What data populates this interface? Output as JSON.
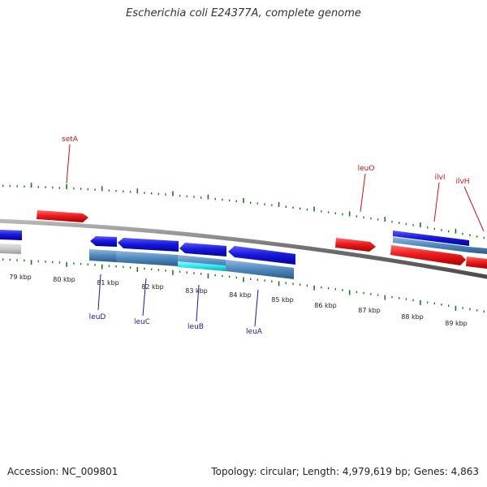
{
  "title": "Escherichia coli E24377A, complete genome",
  "footer": {
    "accession": "Accession: NC_009801",
    "topology": "Topology: circular; Length: 4,979,619 bp; Genes: 4,863"
  },
  "colors": {
    "backbone": "#7f7f7f",
    "tick": "#1a7a1a",
    "forward_gene": "#ee1c1c",
    "reverse_gene": "#1a1add",
    "operon": "#4f88bd",
    "operon_highlight": "#2ee8f0",
    "forward_label": "#cc1111",
    "reverse_label": "#1a1aaa"
  },
  "scale": {
    "unit": "kbp",
    "labels": [
      "79 kbp",
      "80 kbp",
      "81 kbp",
      "82 kbp",
      "83 kbp",
      "84 kbp",
      "85 kbp",
      "86 kbp",
      "87 kbp",
      "88 kbp",
      "89 kbp"
    ]
  },
  "forward_genes": [
    {
      "label": "setA"
    },
    {
      "label": "leuO"
    },
    {
      "label": "ilvI"
    },
    {
      "label": "ilvH"
    }
  ],
  "reverse_genes": [
    {
      "label": "leuD"
    },
    {
      "label": "leuC"
    },
    {
      "label": "leuB"
    },
    {
      "label": "leuA"
    }
  ]
}
